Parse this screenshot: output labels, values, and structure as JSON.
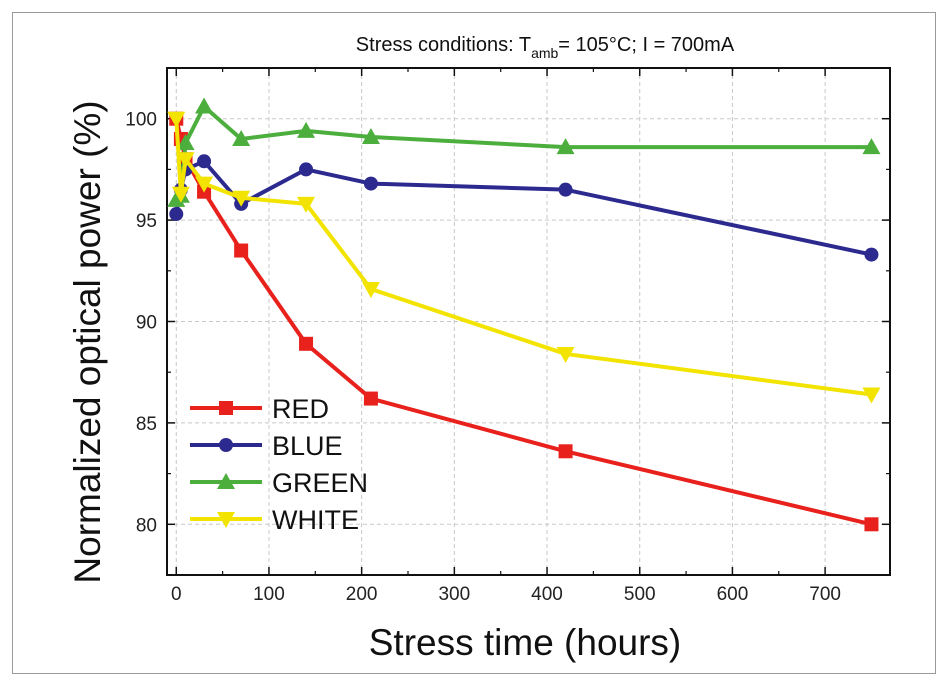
{
  "chart_data": {
    "type": "line",
    "title_prefix": "Stress conditions: T",
    "title_sub": "amb",
    "title_suffix": "= 105°C; I = 700mA",
    "xlabel": "Stress time (hours)",
    "ylabel": "Normalized optical power (%)",
    "xlim": [
      -10,
      770
    ],
    "ylim": [
      77.5,
      102.5
    ],
    "xticks": [
      0,
      100,
      200,
      300,
      400,
      500,
      600,
      700
    ],
    "yticks": [
      80,
      85,
      90,
      95,
      100
    ],
    "grid": true,
    "legend_position": "bottom-left",
    "series": [
      {
        "name": "RED",
        "color": "#e8211c",
        "marker": "square",
        "x": [
          0,
          5,
          10,
          30,
          70,
          140,
          210,
          420,
          750
        ],
        "y": [
          100.0,
          99.0,
          98.0,
          96.4,
          93.5,
          88.9,
          86.2,
          83.6,
          80.0
        ]
      },
      {
        "name": "BLUE",
        "color": "#2d2a8f",
        "marker": "circle",
        "x": [
          0,
          5,
          10,
          30,
          70,
          140,
          210,
          420,
          750
        ],
        "y": [
          95.3,
          96.5,
          97.5,
          97.9,
          95.8,
          97.5,
          96.8,
          96.5,
          93.3
        ]
      },
      {
        "name": "GREEN",
        "color": "#4caf3d",
        "marker": "triangle-up",
        "x": [
          0,
          5,
          10,
          30,
          70,
          140,
          210,
          420,
          750
        ],
        "y": [
          96.0,
          96.2,
          98.8,
          100.6,
          99.0,
          99.4,
          99.1,
          98.6,
          98.6
        ]
      },
      {
        "name": "WHITE",
        "color": "#f2e400",
        "marker": "triangle-down",
        "x": [
          0,
          5,
          10,
          30,
          70,
          140,
          210,
          420,
          750
        ],
        "y": [
          100.0,
          96.3,
          98.0,
          96.8,
          96.1,
          95.8,
          91.6,
          88.4,
          86.4
        ]
      }
    ]
  }
}
